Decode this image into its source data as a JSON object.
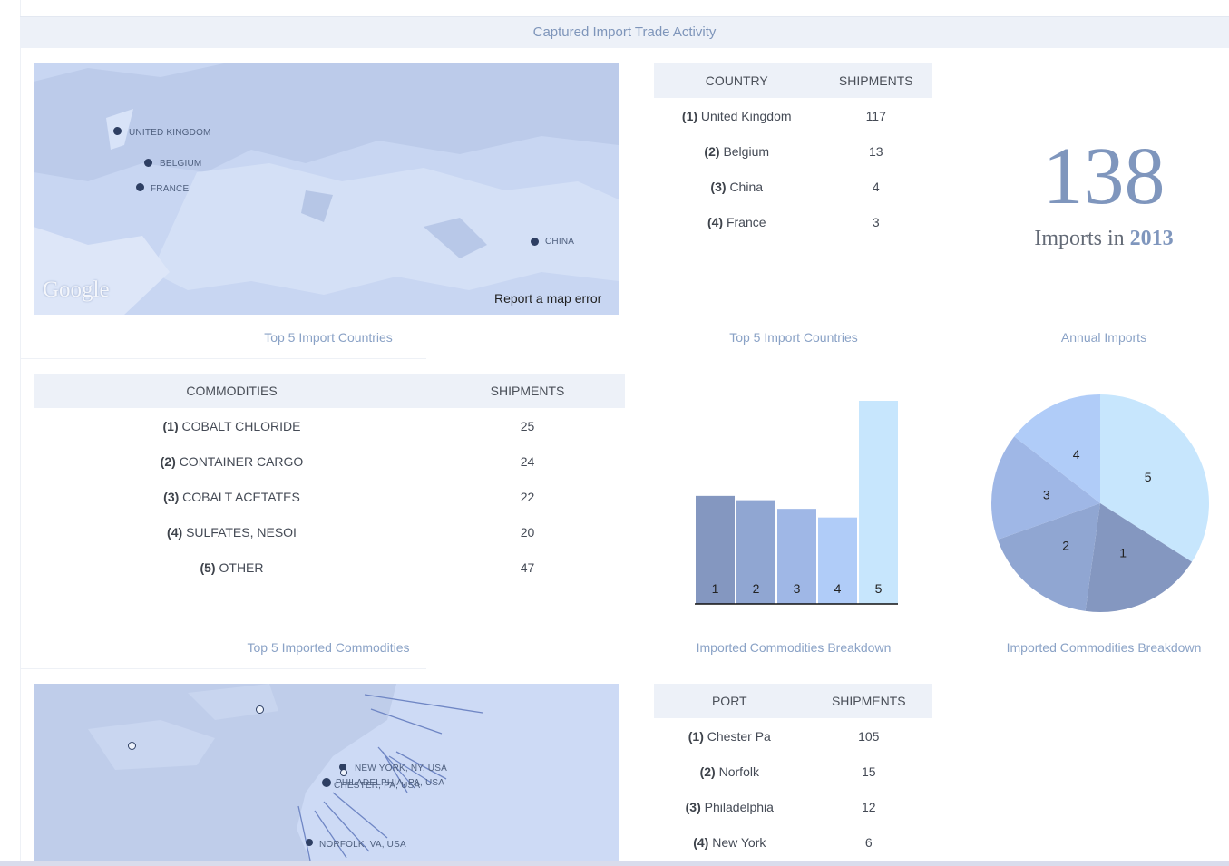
{
  "header": {
    "title": "Captured Import Trade Activity"
  },
  "country_map": {
    "labels": [
      "UNITED KINGDOM",
      "BELGIUM",
      "FRANCE",
      "CHINA"
    ],
    "logo": "Google",
    "error_link": "Report a map error"
  },
  "country_table": {
    "headers": [
      "COUNTRY",
      "SHIPMENTS"
    ],
    "rows": [
      {
        "rank": "(1)",
        "name": "United Kingdom",
        "value": "117"
      },
      {
        "rank": "(2)",
        "name": "Belgium",
        "value": "13"
      },
      {
        "rank": "(3)",
        "name": "China",
        "value": "4"
      },
      {
        "rank": "(4)",
        "name": "France",
        "value": "3"
      }
    ]
  },
  "annual": {
    "number": "138",
    "label": "Imports in",
    "year": "2013"
  },
  "captions": {
    "map_countries": "Top 5 Import Countries",
    "table_countries": "Top 5 Import Countries",
    "annual": "Annual Imports",
    "commodities": "Top 5 Imported Commodities",
    "bar": "Imported Commodities Breakdown",
    "pie": "Imported Commodities Breakdown"
  },
  "commodities_table": {
    "headers": [
      "COMMODITIES",
      "SHIPMENTS"
    ],
    "rows": [
      {
        "rank": "(1)",
        "name": "COBALT CHLORIDE",
        "value": "25"
      },
      {
        "rank": "(2)",
        "name": "CONTAINER CARGO",
        "value": "24"
      },
      {
        "rank": "(3)",
        "name": "COBALT ACETATES",
        "value": "22"
      },
      {
        "rank": "(4)",
        "name": "SULFATES, NESOI",
        "value": "20"
      },
      {
        "rank": "(5)",
        "name": "OTHER",
        "value": "47"
      }
    ]
  },
  "chart_data": [
    {
      "type": "bar",
      "categories": [
        "1",
        "2",
        "3",
        "4",
        "5"
      ],
      "values": [
        25,
        24,
        22,
        20,
        47
      ],
      "colors": [
        "#8497c0",
        "#90a6d2",
        "#9fb7e6",
        "#b0ccf8",
        "#c7e6fd"
      ],
      "ylim": [
        0,
        47
      ]
    },
    {
      "type": "pie",
      "labels": [
        "1",
        "2",
        "3",
        "4",
        "5"
      ],
      "values": [
        25,
        24,
        22,
        20,
        47
      ],
      "colors": [
        "#8497c0",
        "#90a6d2",
        "#9fb7e6",
        "#b0ccf8",
        "#c7e6fd"
      ]
    }
  ],
  "port_map": {
    "labels": [
      "NEW YORK, NY, USA",
      "PHILADELPHIA, PA, USA",
      "CHESTER, PA, USA",
      "NORFOLK, VA, USA"
    ]
  },
  "port_table": {
    "headers": [
      "PORT",
      "SHIPMENTS"
    ],
    "rows": [
      {
        "rank": "(1)",
        "name": "Chester Pa",
        "value": "105"
      },
      {
        "rank": "(2)",
        "name": "Norfolk",
        "value": "15"
      },
      {
        "rank": "(3)",
        "name": "Philadelphia",
        "value": "12"
      },
      {
        "rank": "(4)",
        "name": "New York",
        "value": "6"
      }
    ]
  }
}
